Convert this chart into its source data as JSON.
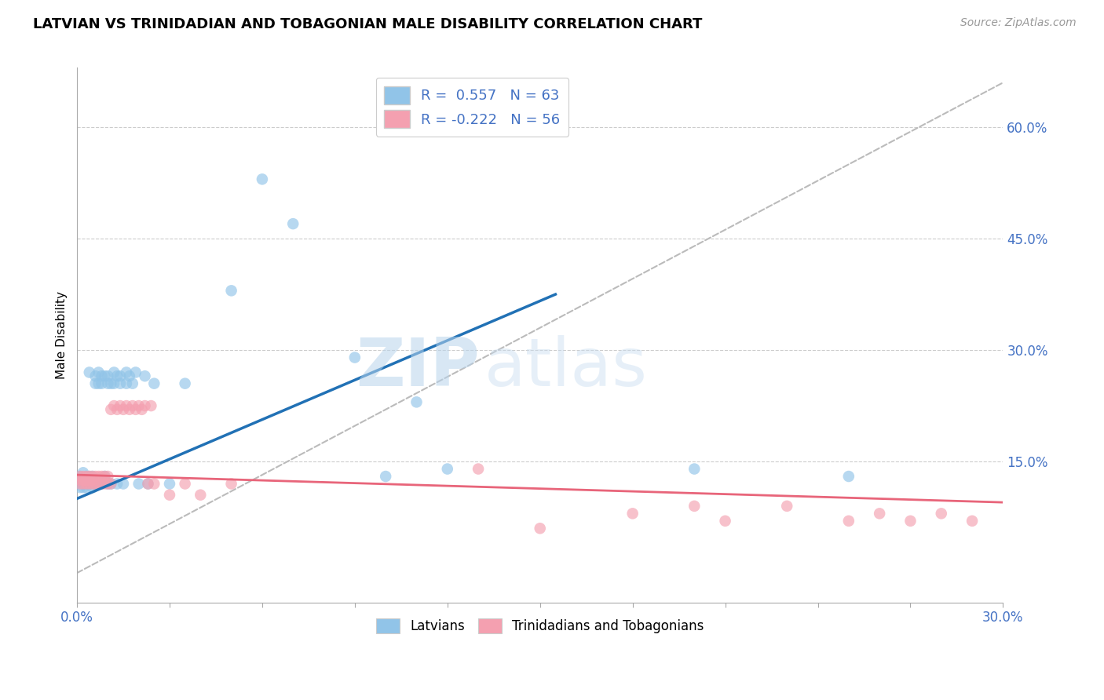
{
  "title": "LATVIAN VS TRINIDADIAN AND TOBAGONIAN MALE DISABILITY CORRELATION CHART",
  "source": "Source: ZipAtlas.com",
  "ylabel": "Male Disability",
  "xlim": [
    0.0,
    0.3
  ],
  "ylim": [
    -0.04,
    0.68
  ],
  "ytick_labels": [
    "15.0%",
    "30.0%",
    "45.0%",
    "60.0%"
  ],
  "ytick_vals": [
    0.15,
    0.3,
    0.45,
    0.6
  ],
  "xtick_show": [
    "0.0%",
    "30.0%"
  ],
  "xtick_vals_show": [
    0.0,
    0.3
  ],
  "blue_color": "#91C4E8",
  "pink_color": "#F4A0B0",
  "trend_blue_color": "#2171B5",
  "trend_pink_color": "#E8657A",
  "diag_color": "#BBBBBB",
  "watermark_zip": "ZIP",
  "watermark_atlas": "atlas",
  "legend_label_blue": "R =  0.557   N = 63",
  "legend_label_pink": "R = -0.222   N = 56",
  "legend_label_latvians": "Latvians",
  "legend_label_trini": "Trinidadians and Tobagonians",
  "blue_trend_x0": 0.0,
  "blue_trend_y0": 0.1,
  "blue_trend_x1": 0.155,
  "blue_trend_y1": 0.375,
  "pink_trend_x0": 0.0,
  "pink_trend_y0": 0.132,
  "pink_trend_x1": 0.3,
  "pink_trend_y1": 0.095,
  "blue_x": [
    0.001,
    0.001,
    0.001,
    0.002,
    0.002,
    0.002,
    0.002,
    0.003,
    0.003,
    0.003,
    0.003,
    0.004,
    0.004,
    0.004,
    0.004,
    0.005,
    0.005,
    0.005,
    0.005,
    0.005,
    0.006,
    0.006,
    0.006,
    0.007,
    0.007,
    0.007,
    0.008,
    0.008,
    0.008,
    0.009,
    0.009,
    0.01,
    0.01,
    0.01,
    0.011,
    0.011,
    0.012,
    0.012,
    0.013,
    0.013,
    0.014,
    0.014,
    0.015,
    0.016,
    0.016,
    0.017,
    0.018,
    0.019,
    0.02,
    0.022,
    0.023,
    0.025,
    0.03,
    0.035,
    0.05,
    0.06,
    0.07,
    0.09,
    0.1,
    0.11,
    0.12,
    0.2,
    0.25
  ],
  "blue_y": [
    0.115,
    0.13,
    0.125,
    0.12,
    0.115,
    0.135,
    0.12,
    0.115,
    0.13,
    0.12,
    0.125,
    0.27,
    0.125,
    0.12,
    0.13,
    0.12,
    0.125,
    0.115,
    0.13,
    0.12,
    0.255,
    0.265,
    0.12,
    0.255,
    0.27,
    0.125,
    0.255,
    0.265,
    0.12,
    0.13,
    0.265,
    0.255,
    0.12,
    0.265,
    0.12,
    0.255,
    0.255,
    0.27,
    0.12,
    0.265,
    0.255,
    0.265,
    0.12,
    0.255,
    0.27,
    0.265,
    0.255,
    0.27,
    0.12,
    0.265,
    0.12,
    0.255,
    0.12,
    0.255,
    0.38,
    0.53,
    0.47,
    0.29,
    0.13,
    0.23,
    0.14,
    0.14,
    0.13
  ],
  "pink_x": [
    0.001,
    0.001,
    0.001,
    0.002,
    0.002,
    0.002,
    0.003,
    0.003,
    0.003,
    0.004,
    0.004,
    0.004,
    0.005,
    0.005,
    0.005,
    0.006,
    0.006,
    0.007,
    0.007,
    0.008,
    0.008,
    0.009,
    0.009,
    0.01,
    0.01,
    0.011,
    0.011,
    0.012,
    0.013,
    0.014,
    0.015,
    0.016,
    0.017,
    0.018,
    0.019,
    0.02,
    0.021,
    0.022,
    0.023,
    0.024,
    0.025,
    0.03,
    0.035,
    0.04,
    0.05,
    0.13,
    0.15,
    0.18,
    0.2,
    0.21,
    0.23,
    0.25,
    0.26,
    0.27,
    0.28,
    0.29
  ],
  "pink_y": [
    0.13,
    0.12,
    0.125,
    0.13,
    0.12,
    0.125,
    0.12,
    0.13,
    0.125,
    0.12,
    0.13,
    0.125,
    0.12,
    0.13,
    0.125,
    0.12,
    0.13,
    0.12,
    0.13,
    0.12,
    0.13,
    0.12,
    0.13,
    0.12,
    0.13,
    0.22,
    0.12,
    0.225,
    0.22,
    0.225,
    0.22,
    0.225,
    0.22,
    0.225,
    0.22,
    0.225,
    0.22,
    0.225,
    0.12,
    0.225,
    0.12,
    0.105,
    0.12,
    0.105,
    0.12,
    0.14,
    0.06,
    0.08,
    0.09,
    0.07,
    0.09,
    0.07,
    0.08,
    0.07,
    0.08,
    0.07
  ]
}
